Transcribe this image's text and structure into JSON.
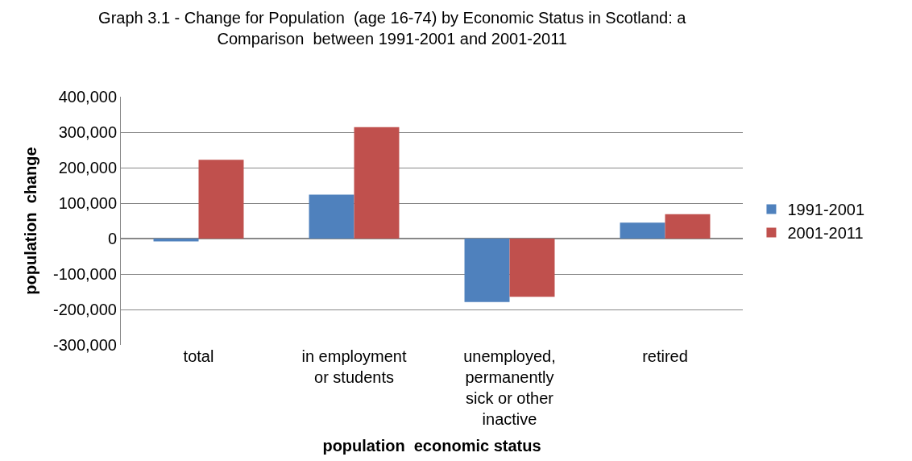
{
  "chart_data": {
    "type": "bar",
    "title": "Graph 3.1 - Change for Population  (age 16-74) by Economic Status in Scotland: a Comparison  between 1991-2001 and 2001-2011",
    "xlabel": "population  economic status",
    "ylabel": "population  change",
    "categories": [
      "total",
      "in employment or students",
      "unemployed, permanently sick or other inactive",
      "retired"
    ],
    "series": [
      {
        "name": "1991-2001",
        "color": "#4f81bd",
        "values": [
          -8000,
          124000,
          -179000,
          45000
        ]
      },
      {
        "name": "2001-2011",
        "color": "#c0504d",
        "values": [
          222000,
          314000,
          -164000,
          69000
        ]
      }
    ],
    "ylim": [
      -300000,
      400000
    ],
    "yticks": [
      {
        "value": -300000,
        "label": "-300,000"
      },
      {
        "value": -200000,
        "label": "-200,000"
      },
      {
        "value": -100000,
        "label": "-100,000"
      },
      {
        "value": 0,
        "label": "0"
      },
      {
        "value": 100000,
        "label": "100,000"
      },
      {
        "value": 200000,
        "label": "200,000"
      },
      {
        "value": 300000,
        "label": "300,000"
      },
      {
        "value": 400000,
        "label": "400,000"
      }
    ],
    "grid": "y",
    "legend": "right"
  }
}
